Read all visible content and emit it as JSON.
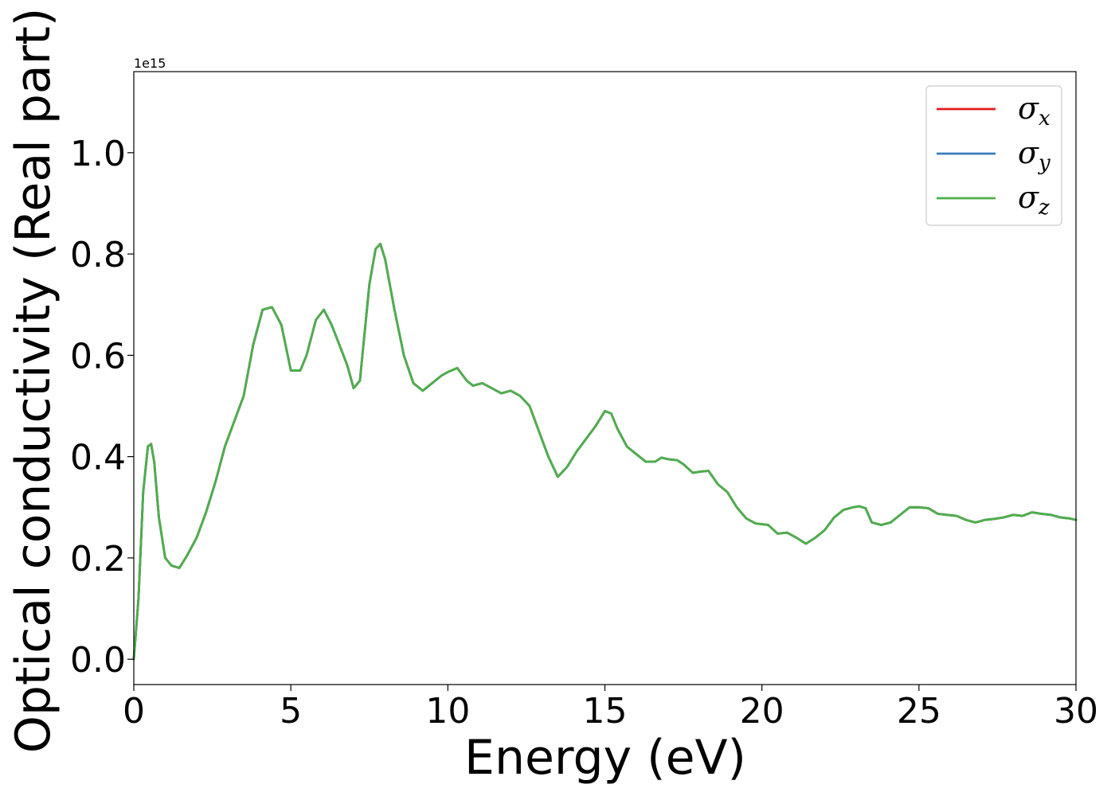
{
  "chart_data": {
    "type": "line",
    "title": "",
    "xlabel": "Energy (eV)",
    "ylabel": "Optical conductivity (Real part)",
    "y_offset_text": "1e15",
    "xlim": [
      0,
      30
    ],
    "ylim": [
      -0.05,
      1.16
    ],
    "xticks": [
      0,
      5,
      10,
      15,
      20,
      25,
      30
    ],
    "xtick_labels": [
      "0",
      "5",
      "10",
      "15",
      "20",
      "25",
      "30"
    ],
    "yticks": [
      0.0,
      0.2,
      0.4,
      0.6,
      0.8,
      1.0
    ],
    "ytick_labels": [
      "0.0",
      "0.2",
      "0.4",
      "0.6",
      "0.8",
      "1.0"
    ],
    "grid": false,
    "legend_position": "top-right",
    "x": [
      0.0,
      0.15,
      0.3,
      0.45,
      0.55,
      0.65,
      0.8,
      1.0,
      1.2,
      1.45,
      1.7,
      2.0,
      2.3,
      2.6,
      2.9,
      3.2,
      3.5,
      3.8,
      4.1,
      4.4,
      4.7,
      5.0,
      5.3,
      5.5,
      5.8,
      6.05,
      6.3,
      6.55,
      6.8,
      7.0,
      7.2,
      7.5,
      7.7,
      7.85,
      8.0,
      8.3,
      8.6,
      8.9,
      9.2,
      9.5,
      9.8,
      10.0,
      10.3,
      10.6,
      10.8,
      11.1,
      11.4,
      11.7,
      12.0,
      12.3,
      12.6,
      12.9,
      13.2,
      13.5,
      13.8,
      14.1,
      14.4,
      14.7,
      15.0,
      15.2,
      15.4,
      15.7,
      16.0,
      16.3,
      16.6,
      16.8,
      17.0,
      17.3,
      17.5,
      17.8,
      18.0,
      18.3,
      18.6,
      18.9,
      19.2,
      19.5,
      19.8,
      20.2,
      20.5,
      20.8,
      21.1,
      21.4,
      21.7,
      22.0,
      22.3,
      22.6,
      22.9,
      23.1,
      23.3,
      23.5,
      23.8,
      24.1,
      24.4,
      24.7,
      25.0,
      25.3,
      25.6,
      25.9,
      26.2,
      26.5,
      26.8,
      27.1,
      27.4,
      27.7,
      28.0,
      28.3,
      28.6,
      28.9,
      29.2,
      29.5,
      29.8,
      30.0
    ],
    "series": [
      {
        "name": "σx",
        "color": "#e41a1c",
        "values": [
          0.0,
          0.12,
          0.33,
          0.42,
          0.425,
          0.39,
          0.28,
          0.2,
          0.185,
          0.18,
          0.205,
          0.24,
          0.29,
          0.35,
          0.42,
          0.47,
          0.52,
          0.62,
          0.69,
          0.695,
          0.66,
          0.57,
          0.57,
          0.6,
          0.67,
          0.69,
          0.66,
          0.62,
          0.58,
          0.535,
          0.55,
          0.74,
          0.81,
          0.82,
          0.79,
          0.69,
          0.6,
          0.545,
          0.53,
          0.545,
          0.56,
          0.567,
          0.575,
          0.55,
          0.54,
          0.545,
          0.535,
          0.525,
          0.53,
          0.52,
          0.5,
          0.45,
          0.4,
          0.36,
          0.38,
          0.41,
          0.435,
          0.46,
          0.49,
          0.485,
          0.455,
          0.42,
          0.405,
          0.39,
          0.39,
          0.398,
          0.395,
          0.393,
          0.385,
          0.368,
          0.37,
          0.372,
          0.345,
          0.33,
          0.3,
          0.278,
          0.268,
          0.265,
          0.248,
          0.25,
          0.24,
          0.228,
          0.24,
          0.255,
          0.28,
          0.295,
          0.3,
          0.302,
          0.298,
          0.27,
          0.265,
          0.27,
          0.285,
          0.3,
          0.3,
          0.298,
          0.287,
          0.285,
          0.283,
          0.275,
          0.27,
          0.275,
          0.277,
          0.28,
          0.285,
          0.283,
          0.29,
          0.287,
          0.285,
          0.28,
          0.278,
          0.275
        ]
      },
      {
        "name": "σy",
        "color": "#377eb8",
        "values": [
          0.0,
          0.12,
          0.33,
          0.42,
          0.425,
          0.39,
          0.28,
          0.2,
          0.185,
          0.18,
          0.205,
          0.24,
          0.29,
          0.35,
          0.42,
          0.47,
          0.52,
          0.62,
          0.69,
          0.695,
          0.66,
          0.57,
          0.57,
          0.6,
          0.67,
          0.69,
          0.66,
          0.62,
          0.58,
          0.535,
          0.55,
          0.74,
          0.81,
          0.82,
          0.79,
          0.69,
          0.6,
          0.545,
          0.53,
          0.545,
          0.56,
          0.567,
          0.575,
          0.55,
          0.54,
          0.545,
          0.535,
          0.525,
          0.53,
          0.52,
          0.5,
          0.45,
          0.4,
          0.36,
          0.38,
          0.41,
          0.435,
          0.46,
          0.49,
          0.485,
          0.455,
          0.42,
          0.405,
          0.39,
          0.39,
          0.398,
          0.395,
          0.393,
          0.385,
          0.368,
          0.37,
          0.372,
          0.345,
          0.33,
          0.3,
          0.278,
          0.268,
          0.265,
          0.248,
          0.25,
          0.24,
          0.228,
          0.24,
          0.255,
          0.28,
          0.295,
          0.3,
          0.302,
          0.298,
          0.27,
          0.265,
          0.27,
          0.285,
          0.3,
          0.3,
          0.298,
          0.287,
          0.285,
          0.283,
          0.275,
          0.27,
          0.275,
          0.277,
          0.28,
          0.285,
          0.283,
          0.29,
          0.287,
          0.285,
          0.28,
          0.278,
          0.275
        ]
      },
      {
        "name": "σz",
        "color": "#4daf4a",
        "values": [
          0.0,
          0.12,
          0.33,
          0.42,
          0.425,
          0.39,
          0.28,
          0.2,
          0.185,
          0.18,
          0.205,
          0.24,
          0.29,
          0.35,
          0.42,
          0.47,
          0.52,
          0.62,
          0.69,
          0.695,
          0.66,
          0.57,
          0.57,
          0.6,
          0.67,
          0.69,
          0.66,
          0.62,
          0.58,
          0.535,
          0.55,
          0.74,
          0.81,
          0.82,
          0.79,
          0.69,
          0.6,
          0.545,
          0.53,
          0.545,
          0.56,
          0.567,
          0.575,
          0.55,
          0.54,
          0.545,
          0.535,
          0.525,
          0.53,
          0.52,
          0.5,
          0.45,
          0.4,
          0.36,
          0.38,
          0.41,
          0.435,
          0.46,
          0.49,
          0.485,
          0.455,
          0.42,
          0.405,
          0.39,
          0.39,
          0.398,
          0.395,
          0.393,
          0.385,
          0.368,
          0.37,
          0.372,
          0.345,
          0.33,
          0.3,
          0.278,
          0.268,
          0.265,
          0.248,
          0.25,
          0.24,
          0.228,
          0.24,
          0.255,
          0.28,
          0.295,
          0.3,
          0.302,
          0.298,
          0.27,
          0.265,
          0.27,
          0.285,
          0.3,
          0.3,
          0.298,
          0.287,
          0.285,
          0.283,
          0.275,
          0.27,
          0.275,
          0.277,
          0.28,
          0.285,
          0.283,
          0.29,
          0.287,
          0.285,
          0.28,
          0.278,
          0.275
        ]
      }
    ],
    "legend": [
      {
        "symbol": "σ",
        "sub": "x",
        "color": "#e41a1c"
      },
      {
        "symbol": "σ",
        "sub": "y",
        "color": "#377eb8"
      },
      {
        "symbol": "σ",
        "sub": "z",
        "color": "#4daf4a"
      }
    ]
  }
}
